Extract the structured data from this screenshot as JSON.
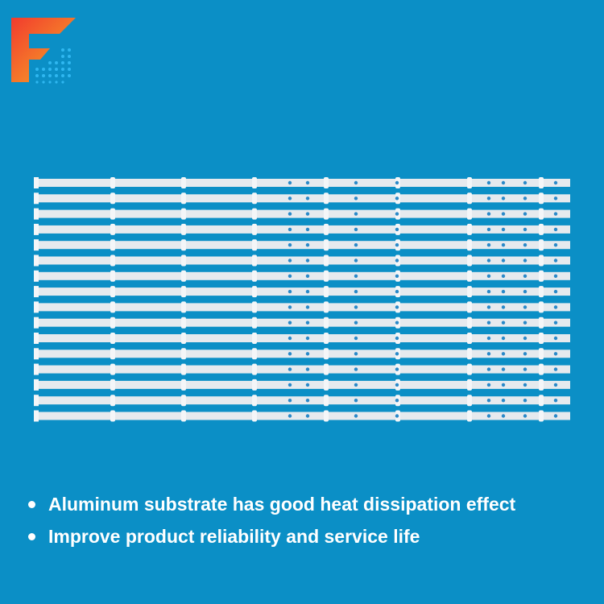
{
  "brand": {
    "logo_icon": "f-logo-icon",
    "colors": [
      "#f23b2e",
      "#f6a623",
      "#2fb7f0"
    ]
  },
  "product": {
    "name": "led-backlight-strips",
    "strip_count": 16,
    "strip_color": "#e6eaee",
    "hole_color": "#2a89c8"
  },
  "background_color": "#0b8fc6",
  "features": [
    {
      "text": "Aluminum substrate has good heat dissipation effect"
    },
    {
      "text": "Improve product reliability and service life"
    }
  ]
}
